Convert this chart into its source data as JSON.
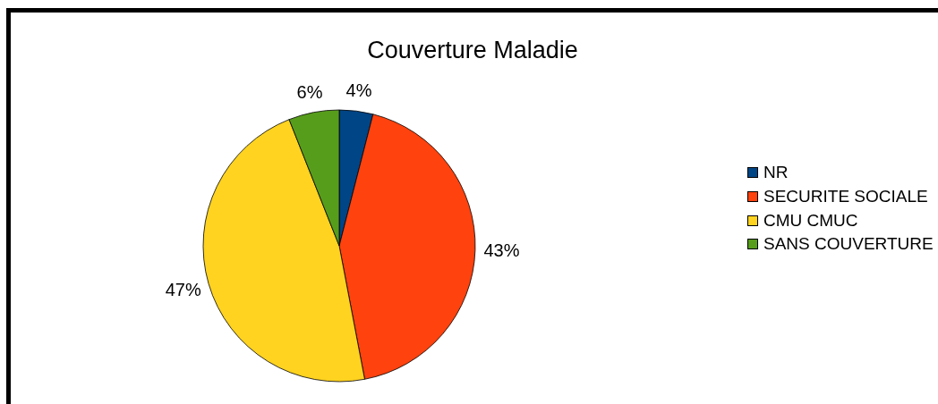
{
  "chart_data": {
    "type": "pie",
    "title": "Couverture Maladie",
    "categories": [
      "NR",
      "SECURITE SOCIALE",
      "CMU CMUC",
      "SANS COUVERTURE"
    ],
    "values": [
      4,
      43,
      47,
      6
    ],
    "colors": [
      "#004586",
      "#ff420e",
      "#ffd320",
      "#579d1c"
    ],
    "value_labels": [
      "4%",
      "43%",
      "47%",
      "6%"
    ],
    "legend": "right"
  }
}
